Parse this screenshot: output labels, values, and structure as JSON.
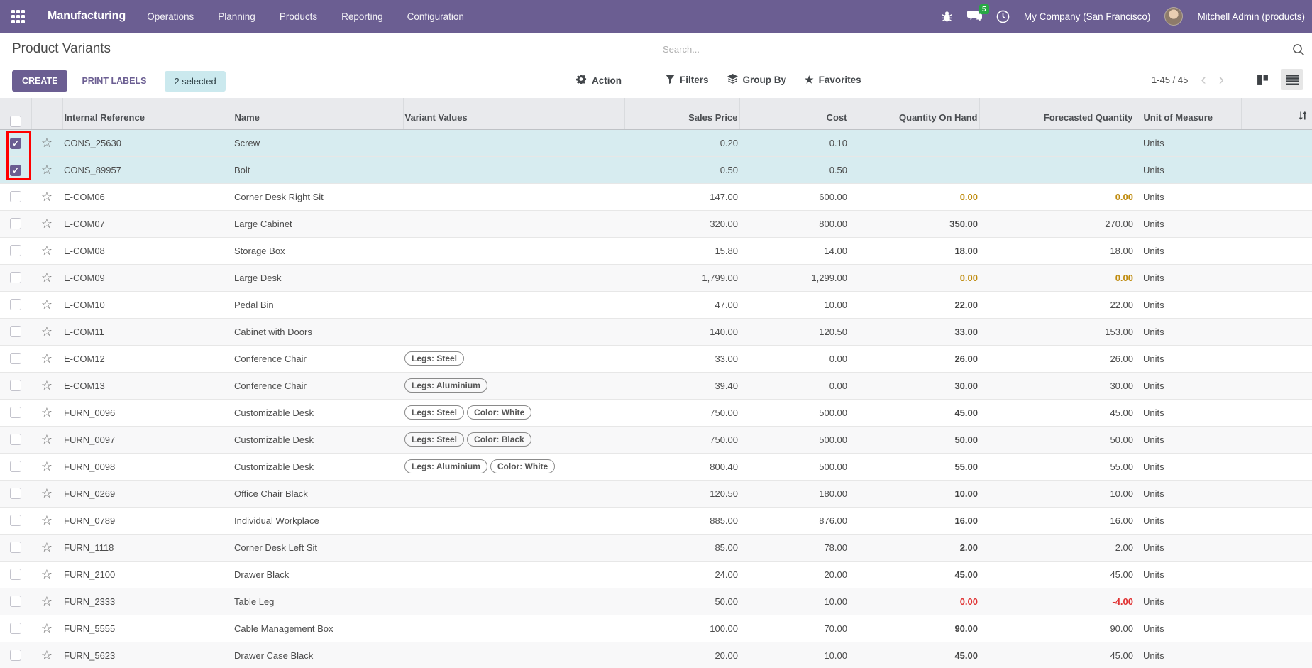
{
  "navbar": {
    "app_name": "Manufacturing",
    "menus": [
      "Operations",
      "Planning",
      "Products",
      "Reporting",
      "Configuration"
    ],
    "message_count": "5",
    "company": "My Company (San Francisco)",
    "user": "Mitchell Admin (products)"
  },
  "control_panel": {
    "title": "Product Variants",
    "search_placeholder": "Search...",
    "create_label": "CREATE",
    "print_labels_label": "PRINT LABELS",
    "selected_badge": "2 selected",
    "action_label": "Action",
    "filters_label": "Filters",
    "group_by_label": "Group By",
    "favorites_label": "Favorites",
    "pager": "1-45 / 45",
    "pager_prev": "‹",
    "pager_next": "›"
  },
  "table": {
    "columns": [
      "Internal Reference",
      "Name",
      "Variant Values",
      "Sales Price",
      "Cost",
      "Quantity On Hand",
      "Forecasted Quantity",
      "Unit of Measure"
    ],
    "rows": [
      {
        "ref": "CONS_25630",
        "name": "Screw",
        "variants": [],
        "sales": "0.20",
        "cost": "0.10",
        "qty": "",
        "forecast": "",
        "uom": "Units",
        "selected": true,
        "qty_style": "normal",
        "forecast_style": "normal"
      },
      {
        "ref": "CONS_89957",
        "name": "Bolt",
        "variants": [],
        "sales": "0.50",
        "cost": "0.50",
        "qty": "",
        "forecast": "",
        "uom": "Units",
        "selected": true,
        "qty_style": "normal",
        "forecast_style": "normal"
      },
      {
        "ref": "E-COM06",
        "name": "Corner Desk Right Sit",
        "variants": [],
        "sales": "147.00",
        "cost": "600.00",
        "qty": "0.00",
        "forecast": "0.00",
        "uom": "Units",
        "selected": false,
        "qty_style": "warning",
        "forecast_style": "warning"
      },
      {
        "ref": "E-COM07",
        "name": "Large Cabinet",
        "variants": [],
        "sales": "320.00",
        "cost": "800.00",
        "qty": "350.00",
        "forecast": "270.00",
        "uom": "Units",
        "selected": false,
        "qty_style": "normal",
        "forecast_style": "normal"
      },
      {
        "ref": "E-COM08",
        "name": "Storage Box",
        "variants": [],
        "sales": "15.80",
        "cost": "14.00",
        "qty": "18.00",
        "forecast": "18.00",
        "uom": "Units",
        "selected": false,
        "qty_style": "normal",
        "forecast_style": "normal"
      },
      {
        "ref": "E-COM09",
        "name": "Large Desk",
        "variants": [],
        "sales": "1,799.00",
        "cost": "1,299.00",
        "qty": "0.00",
        "forecast": "0.00",
        "uom": "Units",
        "selected": false,
        "qty_style": "warning",
        "forecast_style": "warning"
      },
      {
        "ref": "E-COM10",
        "name": "Pedal Bin",
        "variants": [],
        "sales": "47.00",
        "cost": "10.00",
        "qty": "22.00",
        "forecast": "22.00",
        "uom": "Units",
        "selected": false,
        "qty_style": "normal",
        "forecast_style": "normal"
      },
      {
        "ref": "E-COM11",
        "name": "Cabinet with Doors",
        "variants": [],
        "sales": "140.00",
        "cost": "120.50",
        "qty": "33.00",
        "forecast": "153.00",
        "uom": "Units",
        "selected": false,
        "qty_style": "normal",
        "forecast_style": "normal"
      },
      {
        "ref": "E-COM12",
        "name": "Conference Chair",
        "variants": [
          "Legs: Steel"
        ],
        "sales": "33.00",
        "cost": "0.00",
        "qty": "26.00",
        "forecast": "26.00",
        "uom": "Units",
        "selected": false,
        "qty_style": "normal",
        "forecast_style": "normal"
      },
      {
        "ref": "E-COM13",
        "name": "Conference Chair",
        "variants": [
          "Legs: Aluminium"
        ],
        "sales": "39.40",
        "cost": "0.00",
        "qty": "30.00",
        "forecast": "30.00",
        "uom": "Units",
        "selected": false,
        "qty_style": "normal",
        "forecast_style": "normal"
      },
      {
        "ref": "FURN_0096",
        "name": "Customizable Desk",
        "variants": [
          "Legs: Steel",
          "Color: White"
        ],
        "sales": "750.00",
        "cost": "500.00",
        "qty": "45.00",
        "forecast": "45.00",
        "uom": "Units",
        "selected": false,
        "qty_style": "normal",
        "forecast_style": "normal"
      },
      {
        "ref": "FURN_0097",
        "name": "Customizable Desk",
        "variants": [
          "Legs: Steel",
          "Color: Black"
        ],
        "sales": "750.00",
        "cost": "500.00",
        "qty": "50.00",
        "forecast": "50.00",
        "uom": "Units",
        "selected": false,
        "qty_style": "normal",
        "forecast_style": "normal"
      },
      {
        "ref": "FURN_0098",
        "name": "Customizable Desk",
        "variants": [
          "Legs: Aluminium",
          "Color: White"
        ],
        "sales": "800.40",
        "cost": "500.00",
        "qty": "55.00",
        "forecast": "55.00",
        "uom": "Units",
        "selected": false,
        "qty_style": "normal",
        "forecast_style": "normal"
      },
      {
        "ref": "FURN_0269",
        "name": "Office Chair Black",
        "variants": [],
        "sales": "120.50",
        "cost": "180.00",
        "qty": "10.00",
        "forecast": "10.00",
        "uom": "Units",
        "selected": false,
        "qty_style": "normal",
        "forecast_style": "normal"
      },
      {
        "ref": "FURN_0789",
        "name": "Individual Workplace",
        "variants": [],
        "sales": "885.00",
        "cost": "876.00",
        "qty": "16.00",
        "forecast": "16.00",
        "uom": "Units",
        "selected": false,
        "qty_style": "normal",
        "forecast_style": "normal"
      },
      {
        "ref": "FURN_1118",
        "name": "Corner Desk Left Sit",
        "variants": [],
        "sales": "85.00",
        "cost": "78.00",
        "qty": "2.00",
        "forecast": "2.00",
        "uom": "Units",
        "selected": false,
        "qty_style": "normal",
        "forecast_style": "normal"
      },
      {
        "ref": "FURN_2100",
        "name": "Drawer Black",
        "variants": [],
        "sales": "24.00",
        "cost": "20.00",
        "qty": "45.00",
        "forecast": "45.00",
        "uom": "Units",
        "selected": false,
        "qty_style": "normal",
        "forecast_style": "normal"
      },
      {
        "ref": "FURN_2333",
        "name": "Table Leg",
        "variants": [],
        "sales": "50.00",
        "cost": "10.00",
        "qty": "0.00",
        "forecast": "-4.00",
        "uom": "Units",
        "selected": false,
        "qty_style": "danger",
        "forecast_style": "danger"
      },
      {
        "ref": "FURN_5555",
        "name": "Cable Management Box",
        "variants": [],
        "sales": "100.00",
        "cost": "70.00",
        "qty": "90.00",
        "forecast": "90.00",
        "uom": "Units",
        "selected": false,
        "qty_style": "normal",
        "forecast_style": "normal"
      },
      {
        "ref": "FURN_5623",
        "name": "Drawer Case Black",
        "variants": [],
        "sales": "20.00",
        "cost": "10.00",
        "qty": "45.00",
        "forecast": "45.00",
        "uom": "Units",
        "selected": false,
        "qty_style": "normal",
        "forecast_style": "normal"
      }
    ]
  },
  "colors": {
    "navbar": "#6b5e92",
    "accent": "#6b5e92",
    "selected_row": "#d7ecf0",
    "warning_text": "#bf8b0e",
    "danger_text": "#e03131",
    "message_badge": "#28a745",
    "annotation_box": "#ff0000"
  }
}
